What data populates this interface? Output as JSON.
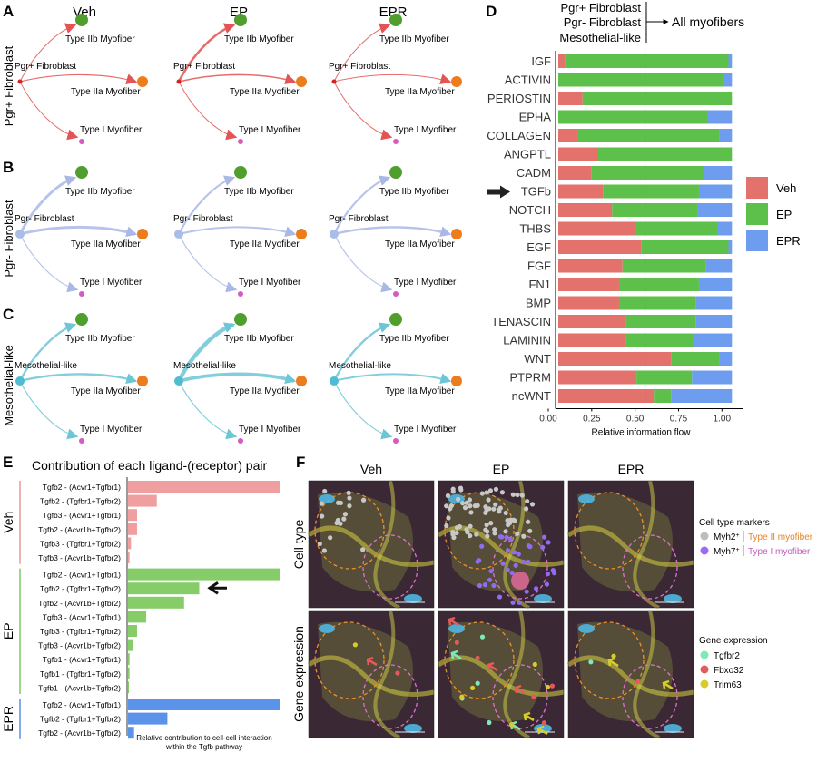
{
  "panels": {
    "A": "A",
    "B": "B",
    "C": "C",
    "D": "D",
    "E": "E",
    "F": "F"
  },
  "conditions": [
    "Veh",
    "EP",
    "EPR"
  ],
  "network": {
    "rows": [
      {
        "label": "Pgr+ Fibroblast",
        "source": "Pgr+ Fibroblast",
        "color": "#e35454",
        "src_color": "#d42020",
        "weights": [
          [
            1.0,
            1.2,
            1.0
          ],
          [
            2.6,
            1.6,
            1.0
          ],
          [
            1.0,
            1.0,
            1.0
          ]
        ]
      },
      {
        "label": "Pgr- Fibroblast",
        "source": "Pgr- Fibroblast",
        "color": "#aab8e6",
        "src_color": "#a9bde6",
        "weights": [
          [
            3.0,
            3.0,
            1.2
          ],
          [
            2.2,
            2.0,
            1.2
          ],
          [
            2.2,
            2.4,
            1.2
          ]
        ]
      },
      {
        "label": "Mesothelial-like",
        "source": "Mesothelial-like",
        "color": "#6cc6d6",
        "src_color": "#4fbcd2",
        "weights": [
          [
            2.4,
            2.4,
            1.2
          ],
          [
            4.5,
            3.8,
            1.2
          ],
          [
            2.4,
            2.0,
            1.2
          ]
        ]
      }
    ],
    "targets": [
      {
        "label": "Type IIb Myofiber",
        "color": "#4f9e2e"
      },
      {
        "label": "Type IIa Myofiber",
        "color": "#ec7c1c"
      },
      {
        "label": "Type I Myofiber",
        "color": "#d65ac0"
      }
    ]
  },
  "legend_d": {
    "sources": [
      "Pgr+ Fibroblast",
      "Pgr- Fibroblast",
      "Mesothelial-like"
    ],
    "arrow_text": "All myofibers"
  },
  "chart_data": [
    {
      "type": "bar",
      "orientation": "horizontal-stacked",
      "categories": [
        "IGF",
        "ACTIVIN",
        "PERIOSTIN",
        "EPHA",
        "COLLAGEN",
        "ANGPTL",
        "CADM",
        "TGFb",
        "NOTCH",
        "THBS",
        "EGF",
        "FGF",
        "FN1",
        "BMP",
        "TENASCIN",
        "LAMININ",
        "WNT",
        "PTPRM",
        "ncWNT"
      ],
      "series": [
        {
          "name": "Veh",
          "color": "#e2726b",
          "values": [
            0.04,
            0.0,
            0.14,
            0.0,
            0.11,
            0.23,
            0.19,
            0.26,
            0.31,
            0.44,
            0.48,
            0.37,
            0.35,
            0.35,
            0.39,
            0.39,
            0.65,
            0.45,
            0.55
          ]
        },
        {
          "name": "EP",
          "color": "#5cc04a",
          "values": [
            0.94,
            0.95,
            0.86,
            0.86,
            0.82,
            0.77,
            0.65,
            0.55,
            0.49,
            0.48,
            0.5,
            0.48,
            0.46,
            0.44,
            0.4,
            0.39,
            0.28,
            0.32,
            0.1
          ]
        },
        {
          "name": "EPR",
          "color": "#6e9df0",
          "values": [
            0.02,
            0.05,
            0.0,
            0.14,
            0.07,
            0.0,
            0.16,
            0.19,
            0.2,
            0.08,
            0.02,
            0.15,
            0.19,
            0.21,
            0.21,
            0.22,
            0.07,
            0.23,
            0.35
          ]
        }
      ],
      "xlabel": "Relative information flow",
      "xticks": [
        "0.00",
        "0.25",
        "0.50",
        "0.75",
        "1.00"
      ],
      "xlim": [
        0,
        1.0
      ],
      "reference_line": 0.5,
      "highlight": "TGFb"
    },
    {
      "type": "bar",
      "orientation": "horizontal",
      "title": "Contribution of each ligand-(receptor) pair",
      "groups": [
        {
          "name": "Veh",
          "color": "#e89999",
          "bar_color": "#ef9f9f",
          "pairs": [
            "Tgfb2 - (Acvr1+Tgfbr1)",
            "Tgfb2 - (Tgfbr1+Tgfbr2)",
            "Tgfb3 - (Acvr1+Tgfbr1)",
            "Tgfb2 - (Acvr1b+Tgfbr2)",
            "Tgfb3 - (Tgfbr1+Tgfbr2)",
            "Tgfb3 - (Acvr1b+Tgfbr2)"
          ],
          "values": [
            1.0,
            0.19,
            0.06,
            0.06,
            0.02,
            0.01
          ]
        },
        {
          "name": "EP",
          "color": "#7cc86a",
          "bar_color": "#86cd6a",
          "pairs": [
            "Tgfb2 - (Acvr1+Tgfbr1)",
            "Tgfb2 - (Tgfbr1+Tgfbr2)",
            "Tgfb2 - (Acvr1b+Tgfbr2)",
            "Tgfb3 - (Acvr1+Tgfbr1)",
            "Tgfb3 - (Tgfbr1+Tgfbr2)",
            "Tgfb3 - (Acvr1b+Tgfbr2)",
            "Tgfb1 - (Acvr1+Tgfbr1)",
            "Tgfb1 - (Tgfbr1+Tgfbr2)",
            "Tgfb1 - (Acvr1b+Tgfbr2)"
          ],
          "values": [
            1.0,
            0.47,
            0.37,
            0.12,
            0.06,
            0.03,
            0.01,
            0.01,
            0.005
          ]
        },
        {
          "name": "EPR",
          "color": "#5b8fe0",
          "bar_color": "#5b93ea",
          "pairs": [
            "Tgfb2 - (Acvr1+Tgfbr1)",
            "Tgfb2 - (Tgfbr1+Tgfbr2)",
            "Tgfb2 - (Acvr1b+Tgfbr2)"
          ],
          "values": [
            1.0,
            0.26,
            0.04
          ]
        }
      ],
      "xlabel": "Relative contribution to cell-cell interaction within the Tgfb pathway",
      "highlight": "EP: Tgfb2 - (Tgfbr1+Tgfbr2)"
    }
  ],
  "legend_d_series": [
    "Veh",
    "EP",
    "EPR"
  ],
  "panel_f": {
    "columns": [
      "Veh",
      "EP",
      "EPR"
    ],
    "rows": [
      "Cell type",
      "Gene expression"
    ],
    "legend_cell_title": "Cell type markers",
    "legend_cell": [
      {
        "marker": "Myh2",
        "sup": "+",
        "label": "Type II myofiber",
        "dot": "#bdbdbd",
        "text_color": "#e0852a"
      },
      {
        "marker": "Myh7",
        "sup": "+",
        "label": "Type I myofiber",
        "dot": "#9a6cf2",
        "text_color": "#c25cc0"
      }
    ],
    "legend_gene_title": "Gene expression",
    "legend_gene": [
      {
        "label": "Tgfbr2",
        "dot": "#7fe8b8"
      },
      {
        "label": "Fbxo32",
        "dot": "#e45a5a"
      },
      {
        "label": "Trim63",
        "dot": "#d8cc2a"
      }
    ]
  }
}
